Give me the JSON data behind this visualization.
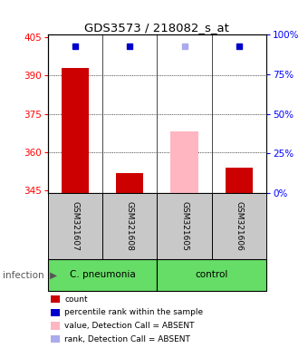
{
  "title": "GDS3573 / 218082_s_at",
  "samples": [
    "GSM321607",
    "GSM321608",
    "GSM321605",
    "GSM321606"
  ],
  "ylim_left": [
    344,
    406
  ],
  "ylim_right": [
    0,
    100
  ],
  "yticks_left": [
    345,
    360,
    375,
    390,
    405
  ],
  "yticks_right": [
    0,
    25,
    50,
    75,
    100
  ],
  "counts": [
    393.0,
    352.0,
    null,
    354.0
  ],
  "counts_absent": [
    null,
    null,
    368.0,
    null
  ],
  "percentile": [
    93.0,
    93.0,
    null,
    93.0
  ],
  "percentile_absent": [
    null,
    null,
    93.0,
    null
  ],
  "bar_bottom": 344,
  "bar_color": "#cc0000",
  "bar_absent_color": "#ffb6c1",
  "dot_color": "#0000cc",
  "dot_absent_color": "#aaaaee",
  "header_bg": "#c8c8c8",
  "green_bg": "#66dd66",
  "legend_items": [
    {
      "label": "count",
      "color": "#cc0000"
    },
    {
      "label": "percentile rank within the sample",
      "color": "#0000cc"
    },
    {
      "label": "value, Detection Call = ABSENT",
      "color": "#ffb6c1"
    },
    {
      "label": "rank, Detection Call = ABSENT",
      "color": "#aaaaee"
    }
  ],
  "cpneumonia_label": "C. pneumonia",
  "control_label": "control",
  "infection_label": "infection"
}
